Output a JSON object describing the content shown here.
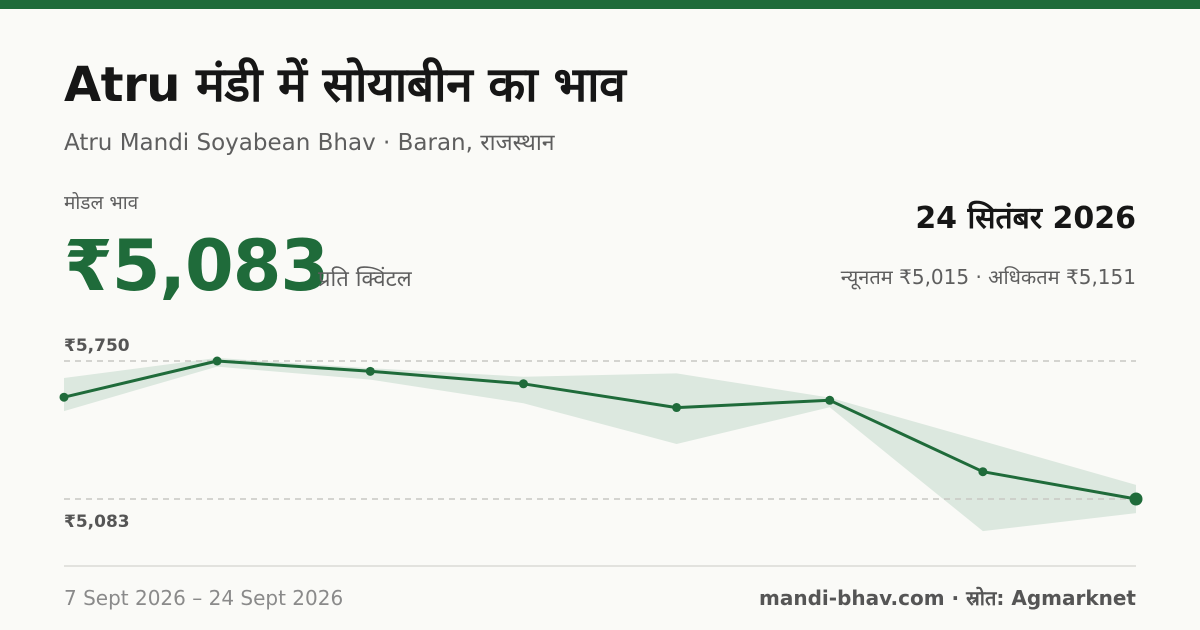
{
  "header": {
    "title": "Atru मंडी में सोयाबीन का भाव",
    "subtitle": "Atru Mandi Soyabean Bhav · Baran, राजस्थान"
  },
  "summary": {
    "modal_label": "मोडल भाव",
    "modal_price": "₹5,083",
    "unit": "प्रति क्विंटल",
    "date": "24 सितंबर 2026",
    "min_max": "न्यूनतम ₹5,015 · अधिकतम ₹5,151"
  },
  "footer": {
    "date_range": "7 Sept 2026 – 24 Sept 2026",
    "source": "mandi-bhav.com · स्रोत: Agmarknet"
  },
  "colors": {
    "accent": "#1f6b3a",
    "band": "#dce8df",
    "grid": "#c8c8c4"
  },
  "chart_data": {
    "type": "line",
    "x": [
      "7 Sept 2026",
      "",
      "",
      "",
      "",
      "",
      "",
      "24 Sept 2026"
    ],
    "series": [
      {
        "values": [
          5575,
          5750,
          5700,
          5640,
          5525,
          5560,
          5215,
          5083
        ]
      }
    ],
    "band_upper": [
      5668,
      5765,
      5715,
      5674,
      5690,
      5573,
      5363,
      5151
    ],
    "band_lower": [
      5508,
      5723,
      5660,
      5546,
      5349,
      5526,
      4928,
      5015
    ],
    "y_labels": [
      "₹5,750",
      "₹5,083"
    ],
    "reference_lines": [
      5750,
      5083
    ],
    "ylim": [
      4928,
      5765
    ],
    "grid": false,
    "legend": "none"
  }
}
